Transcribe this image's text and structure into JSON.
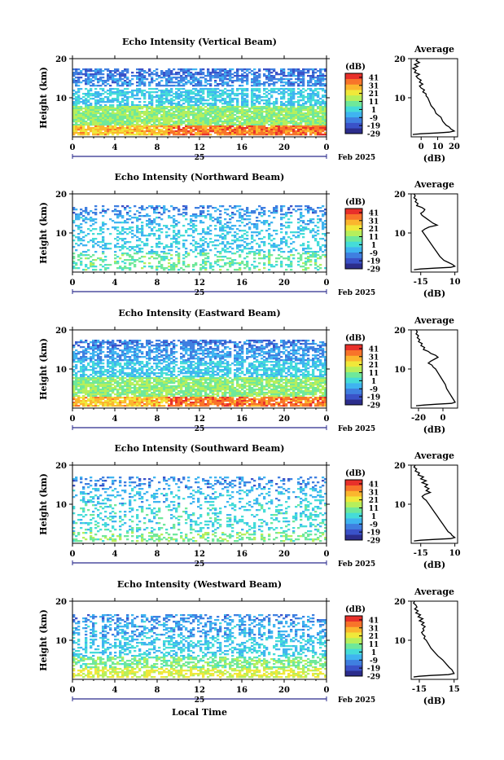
{
  "chart_data": {
    "type": "heatmap",
    "xlabel": "Local Time",
    "date_label": "Feb 2025",
    "day": "25",
    "xticks": [
      "0",
      "4",
      "8",
      "12",
      "16",
      "20",
      "0"
    ],
    "xlim": [
      0,
      24
    ],
    "ylabel": "Height (km)",
    "yticks": [
      "20",
      "10"
    ],
    "ylim": [
      0,
      20
    ],
    "colorbar": {
      "label": "(dB)",
      "ticks": [
        "41",
        "31",
        "21",
        "11",
        "1",
        "-9",
        "-19",
        "-29"
      ],
      "range": [
        -29,
        46
      ],
      "colormap": [
        "#2c2d8c",
        "#3a52c8",
        "#3f7fe0",
        "#3fb4f0",
        "#45dcd8",
        "#6fe89a",
        "#b6ef5c",
        "#f0e83a",
        "#fbb62e",
        "#f8742a",
        "#e8302a"
      ]
    },
    "avg_title": "Average",
    "avg_xlabel": "(dB)",
    "panels": [
      {
        "title": "Echo Intensity (Vertical Beam)",
        "avg_xticks": [
          "0",
          "10",
          "20"
        ],
        "avg_xlim": [
          -6,
          22
        ],
        "avg_profile": [
          [
            20,
            -2
          ],
          [
            19.5,
            -3
          ],
          [
            19,
            -1
          ],
          [
            18.5,
            -4
          ],
          [
            18,
            -2
          ],
          [
            17.5,
            -5
          ],
          [
            17,
            -3
          ],
          [
            16.5,
            -4
          ],
          [
            16,
            -1
          ],
          [
            15.5,
            -3
          ],
          [
            15,
            -2
          ],
          [
            14.5,
            0
          ],
          [
            14,
            -1
          ],
          [
            13.5,
            1
          ],
          [
            13,
            -1
          ],
          [
            12.5,
            0
          ],
          [
            12,
            2
          ],
          [
            11.5,
            1
          ],
          [
            11,
            3
          ],
          [
            10.5,
            3
          ],
          [
            10,
            4
          ],
          [
            9,
            5
          ],
          [
            8,
            6
          ],
          [
            7,
            8
          ],
          [
            6,
            9
          ],
          [
            5,
            12
          ],
          [
            4,
            13
          ],
          [
            3,
            15
          ],
          [
            2.5,
            17
          ],
          [
            2,
            18
          ],
          [
            1.5,
            20
          ],
          [
            1.2,
            17
          ],
          [
            1,
            10
          ],
          [
            0.8,
            0
          ],
          [
            0.6,
            -5
          ]
        ]
      },
      {
        "title": "Echo Intensity (Northward Beam)",
        "avg_xticks": [
          "-15",
          "10"
        ],
        "avg_xlim": [
          -22,
          12
        ],
        "avg_profile": [
          [
            20,
            -20
          ],
          [
            19.5,
            -19
          ],
          [
            19,
            -20
          ],
          [
            18.5,
            -18
          ],
          [
            18,
            -19
          ],
          [
            17.5,
            -17
          ],
          [
            17,
            -18
          ],
          [
            16.5,
            -14
          ],
          [
            16,
            -12
          ],
          [
            15.5,
            -13
          ],
          [
            15,
            -15
          ],
          [
            14.5,
            -14
          ],
          [
            14,
            -12
          ],
          [
            13.5,
            -10
          ],
          [
            13,
            -8
          ],
          [
            12.5,
            -6
          ],
          [
            12,
            -3
          ],
          [
            11.5,
            -9
          ],
          [
            11,
            -12
          ],
          [
            10.5,
            -14
          ],
          [
            10,
            -13
          ],
          [
            9,
            -11
          ],
          [
            8,
            -9
          ],
          [
            7,
            -7
          ],
          [
            6,
            -5
          ],
          [
            5,
            -3
          ],
          [
            4,
            -1
          ],
          [
            3,
            2
          ],
          [
            2.5,
            5
          ],
          [
            2,
            8
          ],
          [
            1.5,
            10
          ],
          [
            1.2,
            7
          ],
          [
            1,
            -5
          ],
          [
            0.8,
            -15
          ],
          [
            0.6,
            -20
          ]
        ]
      },
      {
        "title": "Echo Intensity (Eastward Beam)",
        "avg_xticks": [
          "-20",
          "0"
        ],
        "avg_xlim": [
          -26,
          12
        ],
        "avg_profile": [
          [
            20,
            -22
          ],
          [
            19.5,
            -21
          ],
          [
            19,
            -22
          ],
          [
            18.5,
            -20
          ],
          [
            18,
            -21
          ],
          [
            17.5,
            -19
          ],
          [
            17,
            -20
          ],
          [
            16.5,
            -17
          ],
          [
            16,
            -18
          ],
          [
            15.5,
            -15
          ],
          [
            15,
            -16
          ],
          [
            14.5,
            -12
          ],
          [
            14,
            -10
          ],
          [
            13.5,
            -6
          ],
          [
            13,
            -4
          ],
          [
            12.5,
            -7
          ],
          [
            12,
            -10
          ],
          [
            11.5,
            -12
          ],
          [
            11,
            -9
          ],
          [
            10.5,
            -8
          ],
          [
            10,
            -6
          ],
          [
            9,
            -4
          ],
          [
            8,
            -2
          ],
          [
            7,
            0
          ],
          [
            6,
            2
          ],
          [
            5,
            3
          ],
          [
            4,
            5
          ],
          [
            3,
            7
          ],
          [
            2.5,
            8
          ],
          [
            2,
            9
          ],
          [
            1.5,
            10
          ],
          [
            1.2,
            7
          ],
          [
            1,
            -5
          ],
          [
            0.8,
            -15
          ],
          [
            0.6,
            -22
          ]
        ]
      },
      {
        "title": "Echo Intensity (Southward Beam)",
        "avg_xticks": [
          "-15",
          "10"
        ],
        "avg_xlim": [
          -22,
          12
        ],
        "avg_profile": [
          [
            20,
            -19
          ],
          [
            19.5,
            -20
          ],
          [
            19,
            -18
          ],
          [
            18.5,
            -19
          ],
          [
            18,
            -16
          ],
          [
            17.5,
            -17
          ],
          [
            17,
            -13
          ],
          [
            16.5,
            -15
          ],
          [
            16,
            -11
          ],
          [
            15.5,
            -14
          ],
          [
            15,
            -10
          ],
          [
            14.5,
            -12
          ],
          [
            14,
            -9
          ],
          [
            13.5,
            -11
          ],
          [
            13,
            -8
          ],
          [
            12.5,
            -12
          ],
          [
            12,
            -14
          ],
          [
            11.5,
            -13
          ],
          [
            11,
            -11
          ],
          [
            10.5,
            -10
          ],
          [
            10,
            -9
          ],
          [
            9,
            -7
          ],
          [
            8,
            -5
          ],
          [
            7,
            -3
          ],
          [
            6,
            -1
          ],
          [
            5,
            1
          ],
          [
            4,
            3
          ],
          [
            3,
            5
          ],
          [
            2.5,
            7
          ],
          [
            2,
            8
          ],
          [
            1.5,
            10
          ],
          [
            1.2,
            7
          ],
          [
            1,
            -5
          ],
          [
            0.8,
            -15
          ],
          [
            0.6,
            -20
          ]
        ]
      },
      {
        "title": "Echo Intensity (Westward Beam)",
        "avg_xticks": [
          "-15",
          "15"
        ],
        "avg_xlim": [
          -22,
          18
        ],
        "avg_profile": [
          [
            20,
            -19
          ],
          [
            19.5,
            -20
          ],
          [
            19,
            -18
          ],
          [
            18.5,
            -17
          ],
          [
            18,
            -19
          ],
          [
            17.5,
            -16
          ],
          [
            17,
            -18
          ],
          [
            16.5,
            -14
          ],
          [
            16,
            -16
          ],
          [
            15.5,
            -12
          ],
          [
            15,
            -15
          ],
          [
            14.5,
            -11
          ],
          [
            14,
            -13
          ],
          [
            13.5,
            -10
          ],
          [
            13,
            -12
          ],
          [
            12.5,
            -11
          ],
          [
            12,
            -13
          ],
          [
            11.5,
            -12
          ],
          [
            11,
            -10
          ],
          [
            10.5,
            -11
          ],
          [
            10,
            -9
          ],
          [
            9,
            -7
          ],
          [
            8,
            -5
          ],
          [
            7,
            -2
          ],
          [
            6,
            1
          ],
          [
            5,
            5
          ],
          [
            4,
            8
          ],
          [
            3,
            11
          ],
          [
            2.5,
            13
          ],
          [
            2,
            14
          ],
          [
            1.5,
            15
          ],
          [
            1.2,
            10
          ],
          [
            1,
            -5
          ],
          [
            0.8,
            -15
          ],
          [
            0.6,
            -20
          ]
        ]
      }
    ]
  }
}
